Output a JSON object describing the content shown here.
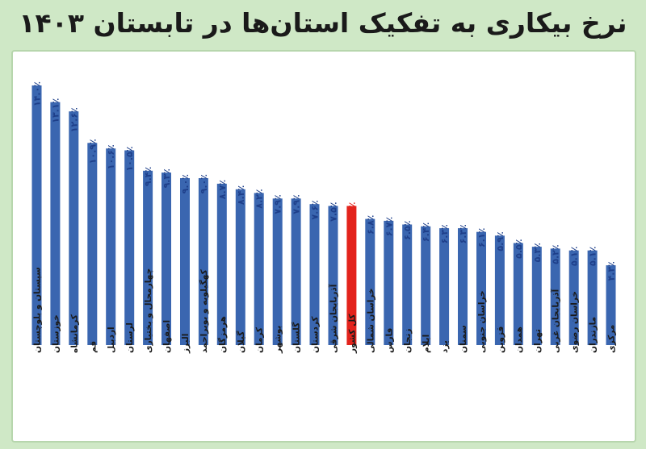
{
  "title": "نرخ بیکاری به تفکیک استان‌ها در تابستان ۱۴۰۳",
  "colors": {
    "bar": "#3a66b0",
    "highlight": "#e3231c",
    "label": "#1e3f8a",
    "background": "#cfe8c6",
    "panel": "#ffffff"
  },
  "chart_data": {
    "type": "bar",
    "title": "نرخ بیکاری به تفکیک استان‌ها در تابستان ۱۴۰۳",
    "xlabel": "",
    "ylabel": "",
    "ylim": [
      0,
      15
    ],
    "grid": false,
    "legend": "none",
    "highlight_category": "کل کشور",
    "categories": [
      "سیستان و بلوچستان",
      "خوزستان",
      "کرمانشاه",
      "قم",
      "اردبیل",
      "لرستان",
      "چهارمحال و بختیاری",
      "اصفهان",
      "البرز",
      "کهگیلویه و بویراحمد",
      "هرمزگان",
      "گیلان",
      "کرمان",
      "بوشهر",
      "گلستان",
      "کردستان",
      "آذربایجان شرقی",
      "کل کشور",
      "خراسان شمالی",
      "فارس",
      "زنجان",
      "ایلام",
      "یزد",
      "سمنان",
      "خراسان جنوبی",
      "قزوین",
      "همدان",
      "تهران",
      "آذربایجان غربی",
      "خراسان رضوی",
      "مازندران",
      "مرکزی"
    ],
    "values": [
      14.0,
      13.1,
      12.6,
      10.9,
      10.6,
      10.5,
      9.4,
      9.3,
      9.0,
      9.0,
      8.7,
      8.4,
      8.2,
      7.9,
      7.9,
      7.6,
      7.5,
      7.5,
      6.8,
      6.7,
      6.5,
      6.4,
      6.3,
      6.3,
      6.1,
      5.9,
      5.5,
      5.3,
      5.2,
      5.1,
      5.1,
      4.3
    ],
    "value_labels": [
      "۱۴.۰٪",
      "۱۳.۱٪",
      "۱۲.۶٪",
      "۱۰.۹٪",
      "۱۰.۶٪",
      "۱۰.۵٪",
      "۹.۴٪",
      "۹.۳٪",
      "۹.۰٪",
      "۹.۰٪",
      "۸.۷٪",
      "۸.۴٪",
      "۸.۲٪",
      "۷.۹٪",
      "۷.۹٪",
      "۷.۶٪",
      "۷.۵٪",
      "۷.۵٪",
      "۶.۸٪",
      "۶.۷٪",
      "۶.۵٪",
      "۶.۴٪",
      "۶.۳٪",
      "۶.۳٪",
      "۶.۱٪",
      "۵.۹٪",
      "۵.۵٪",
      "۵.۳٪",
      "۵.۲٪",
      "۵.۱٪",
      "۵.۱٪",
      "۴.۳٪"
    ]
  }
}
